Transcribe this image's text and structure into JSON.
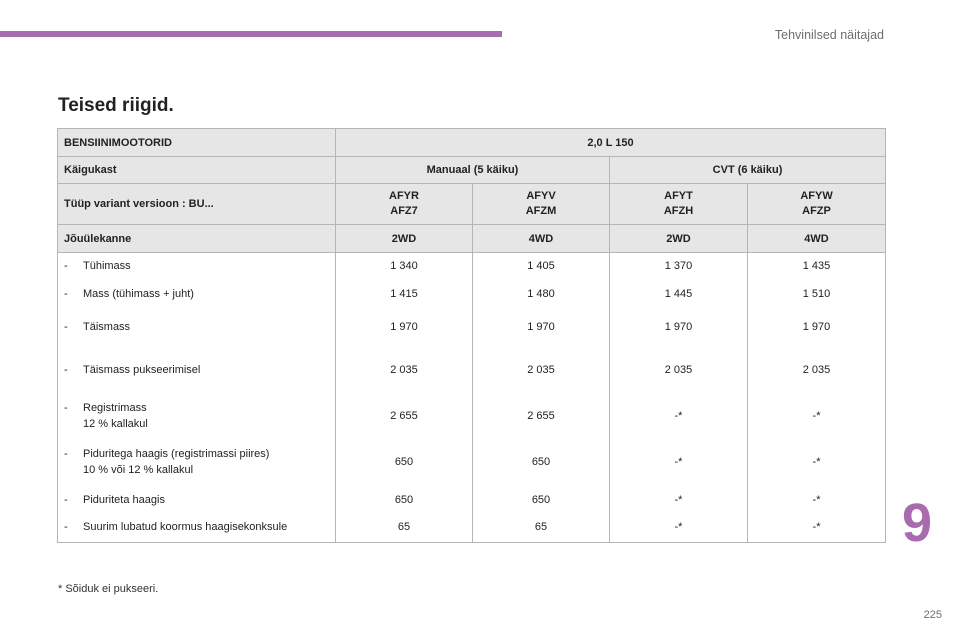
{
  "header": {
    "section": "Tehvinilsed näitajad"
  },
  "title": "Teised riigid.",
  "table": {
    "engine_label": "BENSIINIMOOTORID",
    "engine_value": "2,0 L 150",
    "gearbox_label": "Käigukast",
    "gearbox_manual": "Manuaal (5 käiku)",
    "gearbox_cvt": "CVT (6 käiku)",
    "variant_label": "Tüüp variant versioon : BU...",
    "variants": [
      "AFYR\nAFZ7",
      "AFYV\nAFZM",
      "AFYT\nAFZH",
      "AFYW\nAFZP"
    ],
    "drive_label": "Jõuülekanne",
    "drives": [
      "2WD",
      "4WD",
      "2WD",
      "4WD"
    ],
    "rows": [
      {
        "label": "Tühimass",
        "values": [
          "1 340",
          "1 405",
          "1 370",
          "1 435"
        ]
      },
      {
        "label": "Mass (tühimass + juht)",
        "values": [
          "1 415",
          "1 480",
          "1 445",
          "1 510"
        ]
      },
      {
        "label": "Täismass",
        "values": [
          "1 970",
          "1 970",
          "1 970",
          "1 970"
        ]
      },
      {
        "label": "Täismass pukseerimisel",
        "values": [
          "2 035",
          "2 035",
          "2 035",
          "2 035"
        ]
      },
      {
        "label": "Registrimass\n12 % kallakul",
        "values": [
          "2 655",
          "2 655",
          "-*",
          "-*"
        ]
      },
      {
        "label": "Piduritega haagis (registrimassi piires)\n10 % või 12 % kallakul",
        "values": [
          "650",
          "650",
          "-*",
          "-*"
        ]
      },
      {
        "label": "Piduriteta haagis",
        "values": [
          "650",
          "650",
          "-*",
          "-*"
        ]
      },
      {
        "label": "Suurim lubatud koormus haagisekonksule",
        "values": [
          "65",
          "65",
          "-*",
          "-*"
        ]
      }
    ]
  },
  "footnote": "* Sõiduk ei pukseeri.",
  "chapter_number": "9",
  "page_number": "225"
}
